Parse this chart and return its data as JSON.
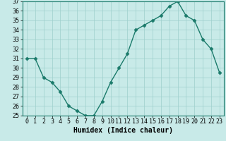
{
  "x": [
    0,
    1,
    2,
    3,
    4,
    5,
    6,
    7,
    8,
    9,
    10,
    11,
    12,
    13,
    14,
    15,
    16,
    17,
    18,
    19,
    20,
    21,
    22,
    23
  ],
  "y": [
    31,
    31,
    29,
    28.5,
    27.5,
    26,
    25.5,
    25,
    25,
    26.5,
    28.5,
    30,
    31.5,
    34,
    34.5,
    35,
    35.5,
    36.5,
    37,
    35.5,
    35,
    33,
    32,
    29.5
  ],
  "line_color": "#1a7a6a",
  "marker": "D",
  "marker_size": 2.5,
  "background_color": "#c8eae8",
  "grid_color": "#9ecfcc",
  "xlabel": "Humidex (Indice chaleur)",
  "ylim": [
    25,
    37
  ],
  "xlim": [
    -0.5,
    23.5
  ],
  "yticks": [
    25,
    26,
    27,
    28,
    29,
    30,
    31,
    32,
    33,
    34,
    35,
    36,
    37
  ],
  "xticks": [
    0,
    1,
    2,
    3,
    4,
    5,
    6,
    7,
    8,
    9,
    10,
    11,
    12,
    13,
    14,
    15,
    16,
    17,
    18,
    19,
    20,
    21,
    22,
    23
  ],
  "xlabel_fontsize": 7,
  "tick_fontsize": 6,
  "linewidth": 1.0
}
